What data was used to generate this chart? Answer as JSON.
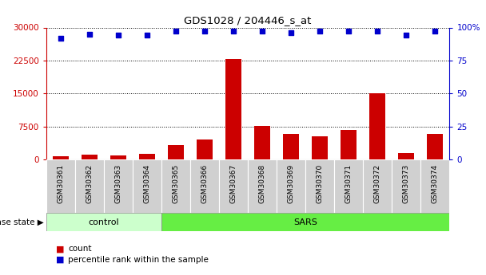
{
  "title": "GDS1028 / 204446_s_at",
  "samples": [
    "GSM30361",
    "GSM30362",
    "GSM30363",
    "GSM30364",
    "GSM30365",
    "GSM30366",
    "GSM30367",
    "GSM30368",
    "GSM30369",
    "GSM30370",
    "GSM30371",
    "GSM30372",
    "GSM30373",
    "GSM30374"
  ],
  "counts": [
    800,
    1100,
    1000,
    1200,
    3200,
    4500,
    22800,
    7600,
    5800,
    5200,
    6800,
    15000,
    1400,
    5800
  ],
  "percentile_ranks": [
    92,
    95,
    94,
    94,
    97,
    97,
    97,
    97,
    96,
    97,
    97,
    97,
    94,
    97
  ],
  "control_count": 4,
  "sars_count": 10,
  "bar_color": "#cc0000",
  "dot_color": "#0000cc",
  "ylim_left": [
    0,
    30000
  ],
  "ylim_right": [
    0,
    100
  ],
  "yticks_left": [
    0,
    7500,
    15000,
    22500,
    30000
  ],
  "ytick_labels_left": [
    "0",
    "7500",
    "15000",
    "22500",
    "30000"
  ],
  "yticks_right": [
    0,
    25,
    50,
    75,
    100
  ],
  "ytick_labels_right": [
    "0",
    "25",
    "50",
    "75",
    "100%"
  ],
  "control_color": "#ccffcc",
  "sars_color": "#66ee44",
  "label_disease_state": "disease state",
  "label_control": "control",
  "label_sars": "SARS",
  "legend_count": "count",
  "legend_percentile": "percentile rank within the sample",
  "background_color": "#ffffff",
  "tickbox_color": "#d0d0d0"
}
